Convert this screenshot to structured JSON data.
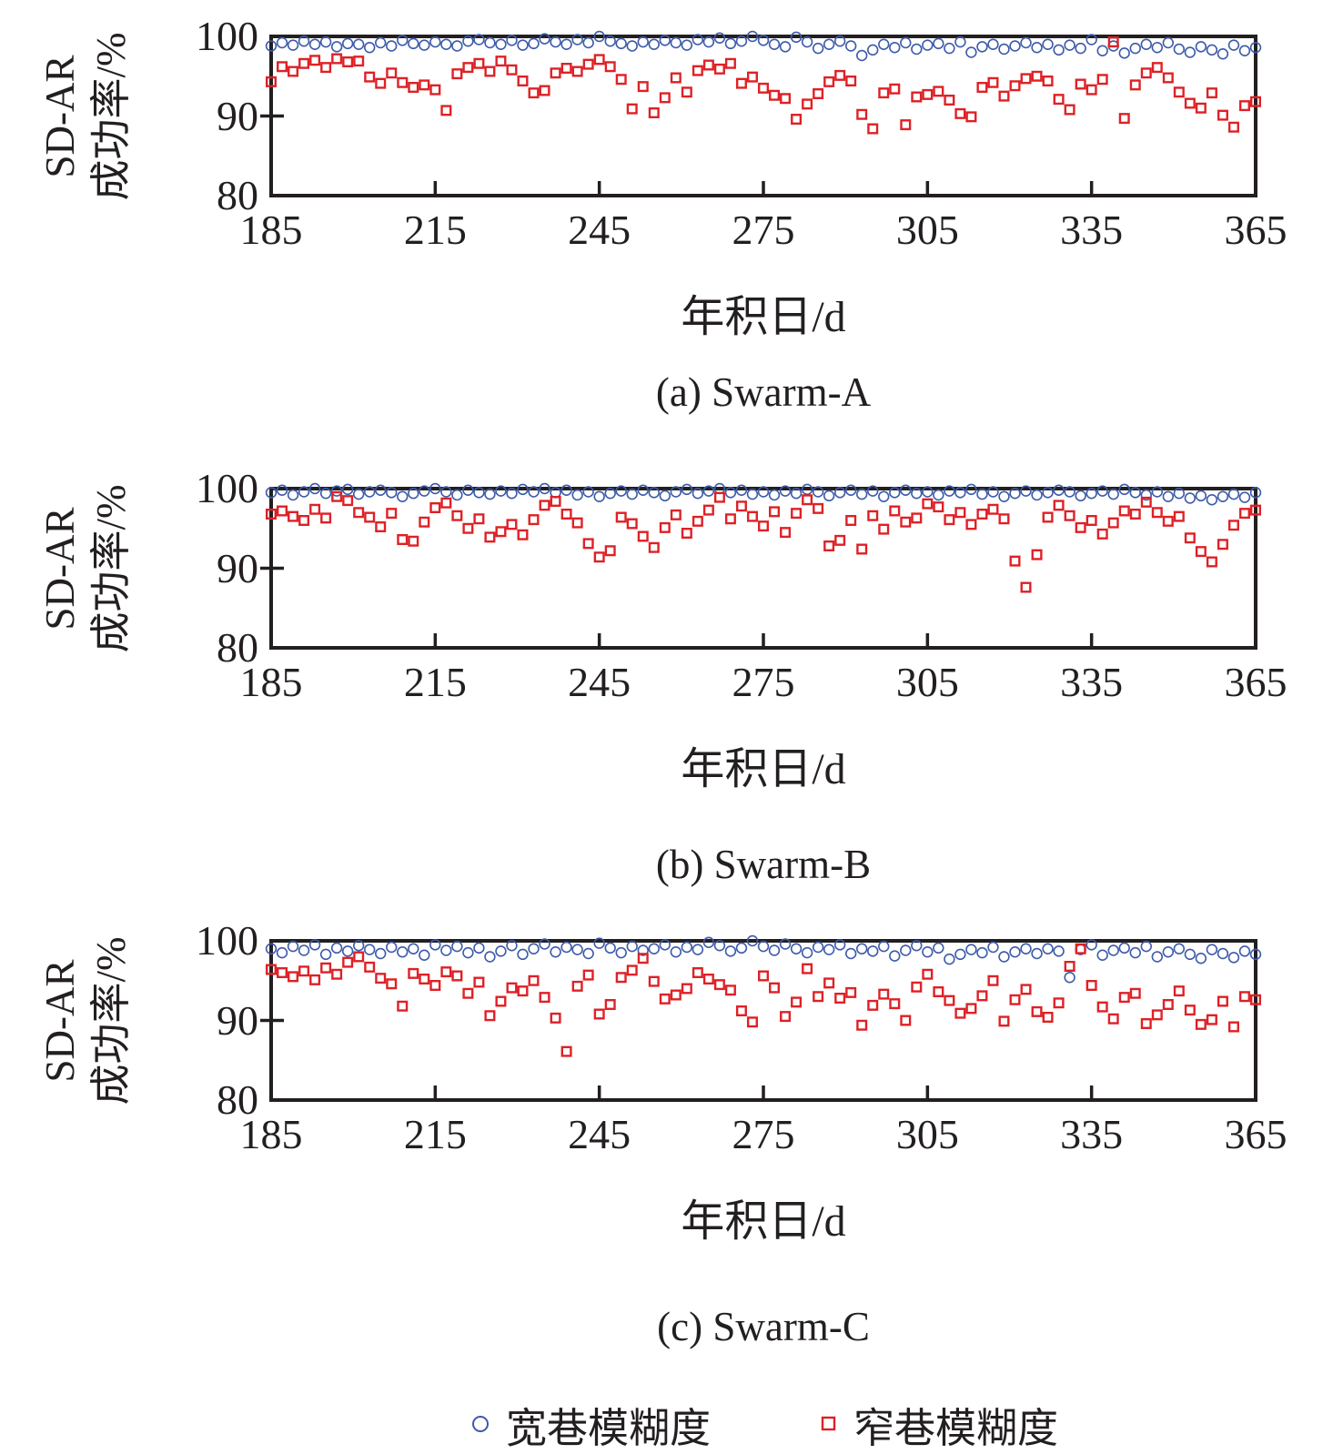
{
  "figure": {
    "y_axis_label": [
      "SD-AR",
      "成功率/%"
    ],
    "x_axis_label": "年积日/d",
    "y_tick_labels": [
      "100",
      "90",
      "80"
    ],
    "x_tick_labels": [
      "185",
      "215",
      "245",
      "275",
      "305",
      "335",
      "365"
    ]
  },
  "panels": [
    {
      "caption": "(a) Swarm-A"
    },
    {
      "caption": "(b) Swarm-B"
    },
    {
      "caption": "(c) Swarm-C"
    }
  ],
  "legend": {
    "items": [
      {
        "label": "宽巷模糊度",
        "marker": "circle",
        "color": "#3D5BA9"
      },
      {
        "label": "窄巷模糊度",
        "marker": "square",
        "color": "#DE2126"
      }
    ]
  },
  "colors": {
    "axis": "#231f20",
    "wide_lane": "#3D5BA9",
    "narrow_lane": "#DE2126"
  },
  "chart_data": [
    {
      "type": "scatter",
      "title": "(a) Swarm-A",
      "xlabel": "年积日/d",
      "ylabel": "SD-AR 成功率/%",
      "xlim": [
        185,
        365
      ],
      "ylim": [
        80,
        100
      ],
      "x_tick_values": [
        185,
        215,
        245,
        275,
        305,
        335,
        365
      ],
      "y_tick_values": [
        100,
        90,
        80
      ],
      "grid": false,
      "legend_position": "below-figure",
      "x": [
        185,
        187,
        189,
        191,
        193,
        195,
        197,
        199,
        201,
        203,
        205,
        207,
        209,
        211,
        213,
        215,
        217,
        219,
        221,
        223,
        225,
        227,
        229,
        231,
        233,
        235,
        237,
        239,
        241,
        243,
        245,
        247,
        249,
        251,
        253,
        255,
        257,
        259,
        261,
        263,
        265,
        267,
        269,
        271,
        273,
        275,
        277,
        279,
        281,
        283,
        285,
        287,
        289,
        291,
        293,
        295,
        297,
        299,
        301,
        303,
        305,
        307,
        309,
        311,
        313,
        315,
        317,
        319,
        321,
        323,
        325,
        327,
        329,
        331,
        333,
        335,
        337,
        339,
        341,
        343,
        345,
        347,
        349,
        351,
        353,
        355,
        357,
        359,
        361,
        363,
        365
      ],
      "series": [
        {
          "name": "宽巷模糊度",
          "marker": "circle",
          "color": "#3D5BA9",
          "y": [
            98.8,
            99.2,
            98.9,
            99.4,
            99.0,
            99.3,
            98.7,
            99.1,
            99.0,
            98.6,
            99.2,
            98.8,
            99.5,
            99.1,
            98.9,
            99.3,
            99.0,
            98.8,
            99.4,
            99.6,
            99.2,
            99.0,
            99.5,
            98.9,
            99.1,
            99.7,
            99.3,
            99.0,
            99.6,
            99.2,
            100.0,
            99.4,
            99.1,
            98.8,
            99.3,
            99.0,
            99.5,
            99.2,
            98.9,
            99.6,
            99.3,
            99.8,
            99.1,
            99.4,
            100.0,
            99.5,
            99.0,
            98.7,
            99.9,
            99.3,
            98.5,
            99.0,
            99.4,
            98.8,
            97.6,
            98.3,
            99.0,
            98.6,
            99.2,
            98.4,
            98.9,
            99.1,
            98.5,
            99.3,
            98.0,
            98.7,
            99.0,
            98.4,
            98.8,
            99.2,
            98.6,
            99.0,
            98.3,
            98.9,
            98.5,
            99.6,
            98.2,
            98.8,
            97.9,
            98.5,
            99.0,
            98.6,
            99.2,
            98.4,
            98.0,
            98.7,
            98.3,
            97.8,
            98.9,
            98.2,
            98.6
          ]
        },
        {
          "name": "窄巷模糊度",
          "marker": "square",
          "color": "#DE2126",
          "y": [
            94.3,
            96.2,
            95.6,
            96.6,
            97.0,
            96.1,
            97.2,
            96.8,
            96.9,
            94.9,
            94.1,
            95.4,
            94.2,
            93.6,
            93.9,
            93.3,
            90.7,
            95.3,
            96.1,
            96.6,
            95.6,
            96.9,
            95.8,
            94.4,
            92.9,
            93.2,
            95.4,
            96.0,
            95.6,
            96.5,
            97.1,
            96.2,
            94.6,
            90.9,
            93.7,
            90.4,
            92.3,
            94.8,
            93.0,
            95.7,
            96.4,
            95.9,
            96.6,
            94.1,
            94.9,
            93.5,
            92.6,
            92.2,
            89.6,
            91.5,
            92.8,
            94.3,
            95.1,
            94.4,
            90.2,
            88.4,
            92.9,
            93.4,
            88.9,
            92.4,
            92.7,
            93.1,
            92.0,
            90.3,
            89.9,
            93.6,
            94.2,
            92.5,
            93.8,
            94.7,
            95.0,
            94.4,
            92.1,
            90.8,
            94.0,
            93.3,
            94.6,
            99.3,
            89.7,
            93.9,
            95.4,
            96.1,
            94.8,
            93.0,
            91.6,
            91.0,
            92.9,
            90.1,
            88.6,
            91.3,
            91.8
          ]
        }
      ]
    },
    {
      "type": "scatter",
      "title": "(b) Swarm-B",
      "xlabel": "年积日/d",
      "ylabel": "SD-AR 成功率/%",
      "xlim": [
        185,
        365
      ],
      "ylim": [
        80,
        100
      ],
      "x_tick_values": [
        185,
        215,
        245,
        275,
        305,
        335,
        365
      ],
      "y_tick_values": [
        100,
        90,
        80
      ],
      "grid": false,
      "legend_position": "below-figure",
      "x": [
        185,
        187,
        189,
        191,
        193,
        195,
        197,
        199,
        201,
        203,
        205,
        207,
        209,
        211,
        213,
        215,
        217,
        219,
        221,
        223,
        225,
        227,
        229,
        231,
        233,
        235,
        237,
        239,
        241,
        243,
        245,
        247,
        249,
        251,
        253,
        255,
        257,
        259,
        261,
        263,
        265,
        267,
        269,
        271,
        273,
        275,
        277,
        279,
        281,
        283,
        285,
        287,
        289,
        291,
        293,
        295,
        297,
        299,
        301,
        303,
        305,
        307,
        309,
        311,
        313,
        315,
        317,
        319,
        321,
        323,
        325,
        327,
        329,
        331,
        333,
        335,
        337,
        339,
        341,
        343,
        345,
        347,
        349,
        351,
        353,
        355,
        357,
        359,
        361,
        363,
        365
      ],
      "series": [
        {
          "name": "宽巷模糊度",
          "marker": "circle",
          "color": "#3D5BA9",
          "y": [
            99.5,
            99.8,
            99.2,
            99.6,
            100.0,
            99.4,
            99.7,
            99.9,
            99.3,
            99.6,
            99.8,
            99.5,
            99.0,
            99.4,
            99.7,
            100.0,
            99.6,
            99.2,
            99.8,
            99.5,
            99.3,
            99.7,
            99.4,
            99.9,
            99.6,
            100.0,
            99.5,
            99.8,
            99.2,
            99.6,
            99.0,
            99.4,
            99.7,
            99.3,
            99.8,
            99.5,
            99.1,
            99.6,
            99.9,
            99.4,
            99.7,
            100.0,
            99.5,
            99.8,
            99.3,
            99.6,
            99.2,
            99.7,
            99.4,
            99.9,
            99.6,
            99.1,
            99.5,
            99.8,
            99.3,
            99.7,
            99.0,
            99.5,
            99.8,
            99.4,
            99.6,
            99.2,
            99.7,
            99.5,
            99.9,
            99.3,
            99.6,
            99.0,
            99.4,
            99.7,
            99.2,
            99.5,
            99.8,
            99.6,
            99.1,
            99.4,
            99.7,
            99.3,
            99.9,
            99.5,
            99.2,
            99.6,
            99.0,
            99.4,
            98.8,
            99.1,
            98.6,
            99.0,
            99.3,
            98.9,
            99.5
          ]
        },
        {
          "name": "窄巷模糊度",
          "marker": "square",
          "color": "#DE2126",
          "y": [
            96.8,
            97.2,
            96.5,
            96.0,
            97.4,
            96.3,
            99.0,
            98.5,
            97.0,
            96.4,
            95.2,
            96.9,
            93.6,
            93.4,
            95.8,
            97.6,
            98.2,
            96.6,
            95.0,
            96.2,
            93.9,
            94.6,
            95.5,
            94.2,
            96.1,
            97.9,
            98.4,
            96.8,
            95.7,
            93.1,
            91.4,
            92.2,
            96.4,
            95.6,
            94.0,
            92.6,
            95.1,
            96.7,
            94.4,
            95.9,
            97.3,
            98.9,
            96.2,
            97.8,
            96.5,
            95.3,
            97.1,
            94.5,
            96.9,
            98.6,
            97.5,
            92.8,
            93.5,
            96.0,
            92.4,
            96.6,
            94.9,
            97.2,
            95.8,
            96.3,
            98.1,
            97.7,
            96.1,
            97.0,
            95.5,
            96.8,
            97.4,
            96.2,
            90.9,
            87.6,
            91.7,
            96.4,
            97.9,
            96.6,
            95.1,
            96.0,
            94.3,
            95.7,
            97.2,
            96.8,
            98.3,
            97.0,
            95.9,
            96.5,
            93.8,
            92.1,
            90.8,
            93.0,
            95.4,
            96.9,
            97.3
          ]
        }
      ]
    },
    {
      "type": "scatter",
      "title": "(c) Swarm-C",
      "xlabel": "年积日/d",
      "ylabel": "SD-AR 成功率/%",
      "xlim": [
        185,
        365
      ],
      "ylim": [
        80,
        100
      ],
      "x_tick_values": [
        185,
        215,
        245,
        275,
        305,
        335,
        365
      ],
      "y_tick_values": [
        100,
        90,
        80
      ],
      "grid": false,
      "legend_position": "below-figure",
      "x": [
        185,
        187,
        189,
        191,
        193,
        195,
        197,
        199,
        201,
        203,
        205,
        207,
        209,
        211,
        213,
        215,
        217,
        219,
        221,
        223,
        225,
        227,
        229,
        231,
        233,
        235,
        237,
        239,
        241,
        243,
        245,
        247,
        249,
        251,
        253,
        255,
        257,
        259,
        261,
        263,
        265,
        267,
        269,
        271,
        273,
        275,
        277,
        279,
        281,
        283,
        285,
        287,
        289,
        291,
        293,
        295,
        297,
        299,
        301,
        303,
        305,
        307,
        309,
        311,
        313,
        315,
        317,
        319,
        321,
        323,
        325,
        327,
        329,
        331,
        333,
        335,
        337,
        339,
        341,
        343,
        345,
        347,
        349,
        351,
        353,
        355,
        357,
        359,
        361,
        363,
        365
      ],
      "series": [
        {
          "name": "宽巷模糊度",
          "marker": "circle",
          "color": "#3D5BA9",
          "y": [
            99.0,
            98.5,
            99.3,
            98.8,
            99.5,
            98.3,
            99.1,
            98.7,
            99.4,
            98.9,
            98.4,
            99.2,
            98.6,
            99.0,
            98.2,
            99.5,
            98.8,
            99.3,
            98.5,
            99.1,
            98.0,
            98.7,
            99.4,
            98.3,
            99.0,
            99.6,
            98.6,
            99.2,
            98.9,
            98.4,
            99.7,
            99.1,
            98.5,
            99.3,
            98.8,
            99.0,
            99.5,
            98.6,
            99.2,
            98.9,
            99.8,
            99.4,
            98.7,
            99.1,
            100.0,
            99.3,
            98.8,
            99.6,
            99.0,
            98.5,
            99.2,
            98.9,
            99.5,
            98.4,
            99.0,
            98.7,
            99.3,
            98.1,
            98.8,
            99.4,
            98.6,
            99.1,
            97.7,
            98.3,
            98.9,
            98.5,
            99.2,
            98.0,
            98.6,
            99.0,
            98.4,
            99.0,
            98.7,
            95.4,
            98.9,
            99.5,
            98.2,
            98.8,
            99.1,
            98.5,
            99.3,
            98.0,
            98.6,
            99.0,
            98.3,
            97.8,
            98.9,
            98.4,
            97.9,
            98.7,
            98.3
          ]
        },
        {
          "name": "窄巷模糊度",
          "marker": "square",
          "color": "#DE2126",
          "y": [
            96.4,
            96.0,
            95.5,
            96.2,
            95.1,
            96.6,
            95.8,
            97.3,
            98.0,
            96.7,
            95.3,
            94.6,
            91.8,
            95.9,
            95.2,
            94.4,
            96.1,
            95.6,
            93.4,
            94.8,
            90.6,
            92.4,
            94.1,
            93.7,
            95.0,
            92.9,
            90.3,
            86.1,
            94.3,
            95.7,
            90.8,
            92.0,
            95.4,
            96.3,
            97.8,
            94.9,
            92.7,
            93.2,
            94.0,
            96.0,
            95.2,
            94.5,
            93.8,
            91.2,
            89.8,
            95.6,
            94.1,
            90.5,
            92.3,
            96.5,
            93.0,
            94.7,
            92.8,
            93.5,
            89.4,
            91.9,
            93.3,
            92.1,
            90.0,
            94.2,
            95.8,
            93.6,
            92.5,
            90.9,
            91.5,
            93.1,
            95.0,
            89.9,
            92.6,
            93.9,
            91.1,
            90.4,
            92.2,
            96.8,
            99.0,
            94.4,
            91.7,
            90.2,
            92.9,
            93.4,
            89.6,
            90.7,
            92.0,
            93.7,
            91.3,
            89.5,
            90.1,
            92.4,
            89.2,
            93.0,
            92.6
          ]
        }
      ]
    }
  ]
}
